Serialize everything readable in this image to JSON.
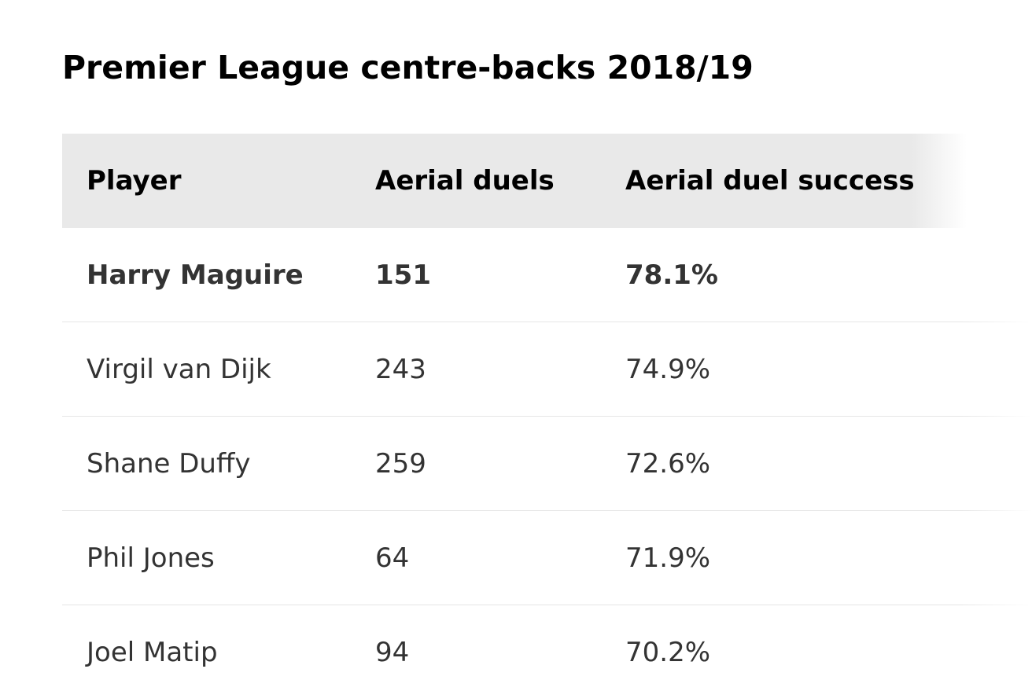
{
  "chart_data": {
    "type": "table",
    "title": "Premier League centre-backs 2018/19",
    "columns": [
      "Player",
      "Aerial duels",
      "Aerial duel success"
    ],
    "rows": [
      {
        "player": "Harry Maguire",
        "aerial_duels": "151",
        "success": "78.1%",
        "highlight": true
      },
      {
        "player": "Virgil van Dijk",
        "aerial_duels": "243",
        "success": "74.9%",
        "highlight": false
      },
      {
        "player": "Shane Duffy",
        "aerial_duels": "259",
        "success": "72.6%",
        "highlight": false
      },
      {
        "player": "Phil Jones",
        "aerial_duels": "64",
        "success": "71.9%",
        "highlight": false
      },
      {
        "player": "Joel Matip",
        "aerial_duels": "94",
        "success": "70.2%",
        "highlight": false
      }
    ]
  },
  "colors": {
    "header_background": "#e9e9e9",
    "row_divider": "#e6e6e6",
    "body_text": "#333333",
    "header_text": "#000000"
  }
}
